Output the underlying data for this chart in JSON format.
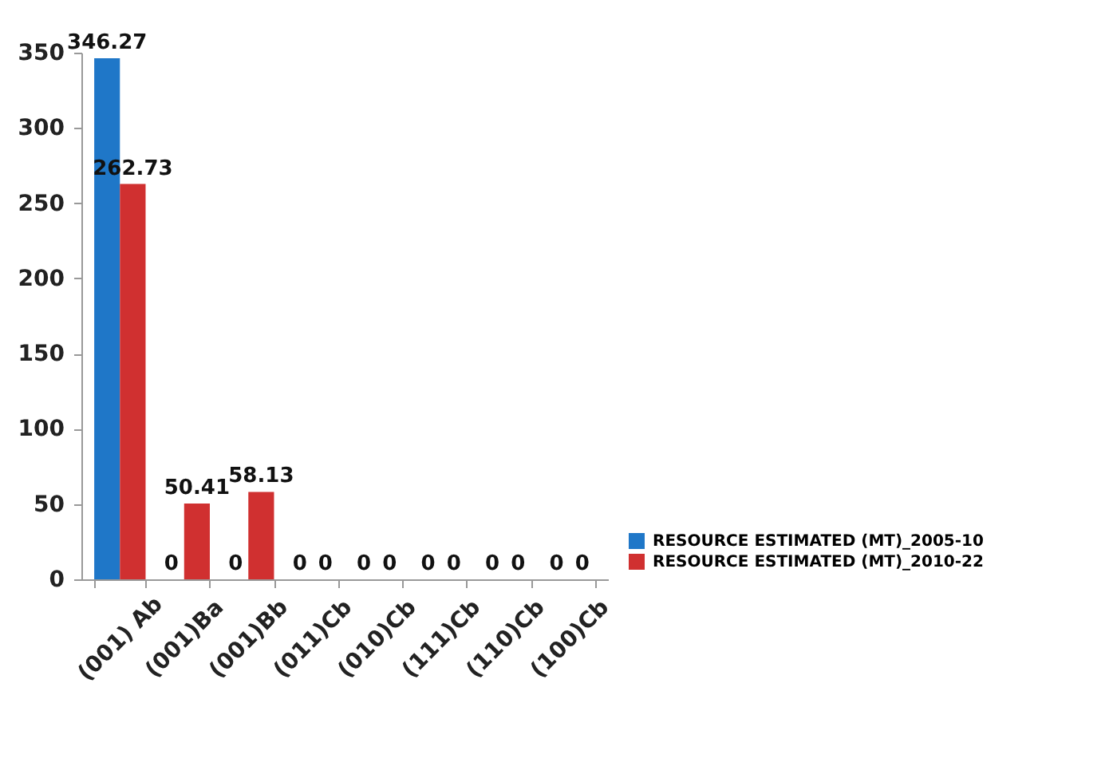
{
  "chart_data": {
    "type": "bar",
    "categories": [
      "(001) Ab",
      "(001)Ba",
      "(001)Bb",
      "(011)Cb",
      "(010)Cb",
      "(111)Cb",
      "(110)Cb",
      "(100)Cb"
    ],
    "series": [
      {
        "name": "RESOURCE ESTIMATED (MT)_2005-10",
        "color": "#1f77c8",
        "values": [
          346.27,
          0,
          0,
          0,
          0,
          0,
          0,
          0
        ]
      },
      {
        "name": "RESOURCE ESTIMATED (MT)_2010-22",
        "color": "#d03030",
        "values": [
          262.73,
          50.41,
          58.13,
          0,
          0,
          0,
          0,
          0
        ]
      }
    ],
    "ylim": [
      0,
      350
    ],
    "yticks": [
      0,
      50,
      100,
      150,
      200,
      250,
      300,
      350
    ],
    "data_labels": true,
    "grid": false,
    "legend": "bottom right"
  }
}
